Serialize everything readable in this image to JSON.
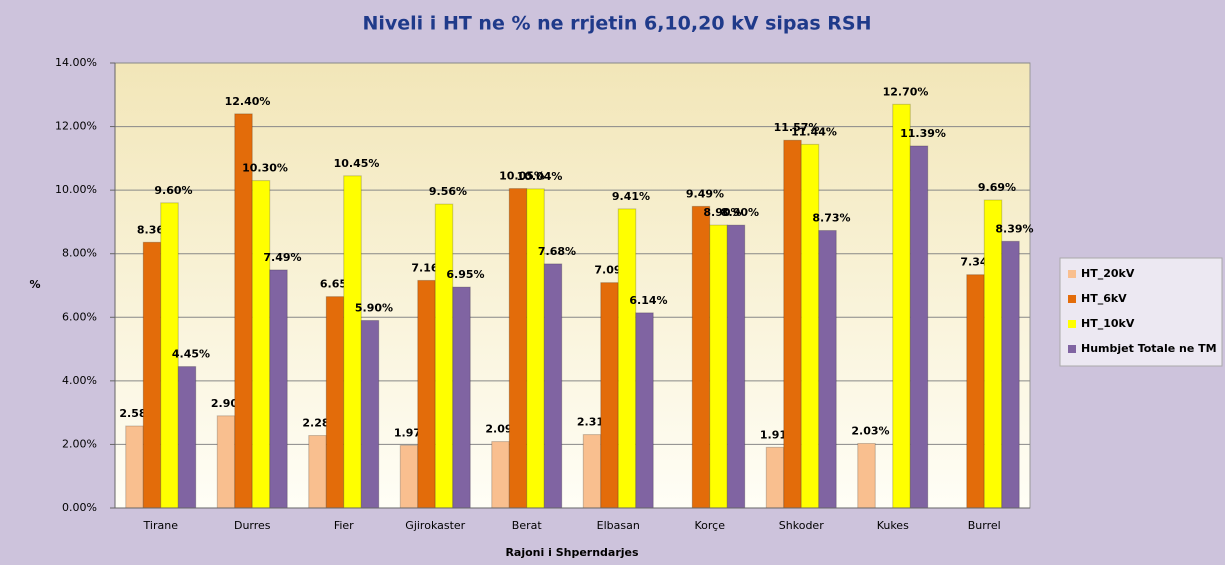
{
  "chart_data": {
    "type": "bar",
    "title": "Niveli i HT ne % ne rrjetin 6,10,20 kV sipas RSH",
    "x_label": "Rajoni i Shperndarjes",
    "y_label": "%",
    "categories": [
      "Tirane",
      "Durres",
      "Fier",
      "Gjirokaster",
      "Berat",
      "Elbasan",
      "Korçe",
      "Shkoder",
      "Kukes",
      "Burrel"
    ],
    "series": [
      {
        "name": "HT_20kV",
        "color": "#f9bf8f",
        "values": [
          2.58,
          2.9,
          2.28,
          1.97,
          2.09,
          2.31,
          null,
          1.91,
          2.03,
          null
        ],
        "value_labels": [
          "2.58%",
          "2.90%",
          "2.28%",
          "1.97%",
          "2.09%",
          "2.31%",
          null,
          "1.91%",
          "2.03%",
          null
        ]
      },
      {
        "name": "HT_6kV",
        "color": "#e36c0a",
        "values": [
          8.36,
          12.4,
          6.65,
          7.16,
          10.05,
          7.09,
          9.49,
          11.57,
          null,
          7.34
        ],
        "value_labels": [
          "8.36%",
          "12.40%",
          "6.65%",
          "7.16%",
          "10.05%",
          "7.09%",
          "9.49%",
          "11.57%",
          null,
          "7.34%"
        ]
      },
      {
        "name": "HT_10kV",
        "color": "#ffff00",
        "values": [
          9.6,
          10.3,
          10.45,
          9.56,
          10.04,
          9.41,
          8.9,
          11.44,
          12.7,
          9.69
        ],
        "value_labels": [
          "9.60%",
          "10.30%",
          "10.45%",
          "9.56%",
          "10.04%",
          "9.41%",
          "8.90%",
          "11.44%",
          "12.70%",
          "9.69%"
        ]
      },
      {
        "name": "Humbjet Totale ne TM",
        "color": "#8064a2",
        "values": [
          4.45,
          7.49,
          5.9,
          6.95,
          7.68,
          6.14,
          8.9,
          8.73,
          11.39,
          8.39
        ],
        "value_labels": [
          "4.45%",
          "7.49%",
          "5.90%",
          "6.95%",
          "7.68%",
          "6.14%",
          "8.90%",
          "8.73%",
          "11.39%",
          "8.39%"
        ]
      }
    ],
    "ylim": [
      0,
      14
    ],
    "yticks": [
      {
        "value": 0,
        "label": "0.00%"
      },
      {
        "value": 2,
        "label": "2.00%"
      },
      {
        "value": 4,
        "label": "4.00%"
      },
      {
        "value": 6,
        "label": "6.00%"
      },
      {
        "value": 8,
        "label": "8.00%"
      },
      {
        "value": 10,
        "label": "10.00%"
      },
      {
        "value": 12,
        "label": "12.00%"
      },
      {
        "value": 14,
        "label": "14.00%"
      }
    ],
    "grid": true,
    "legend": "right"
  }
}
